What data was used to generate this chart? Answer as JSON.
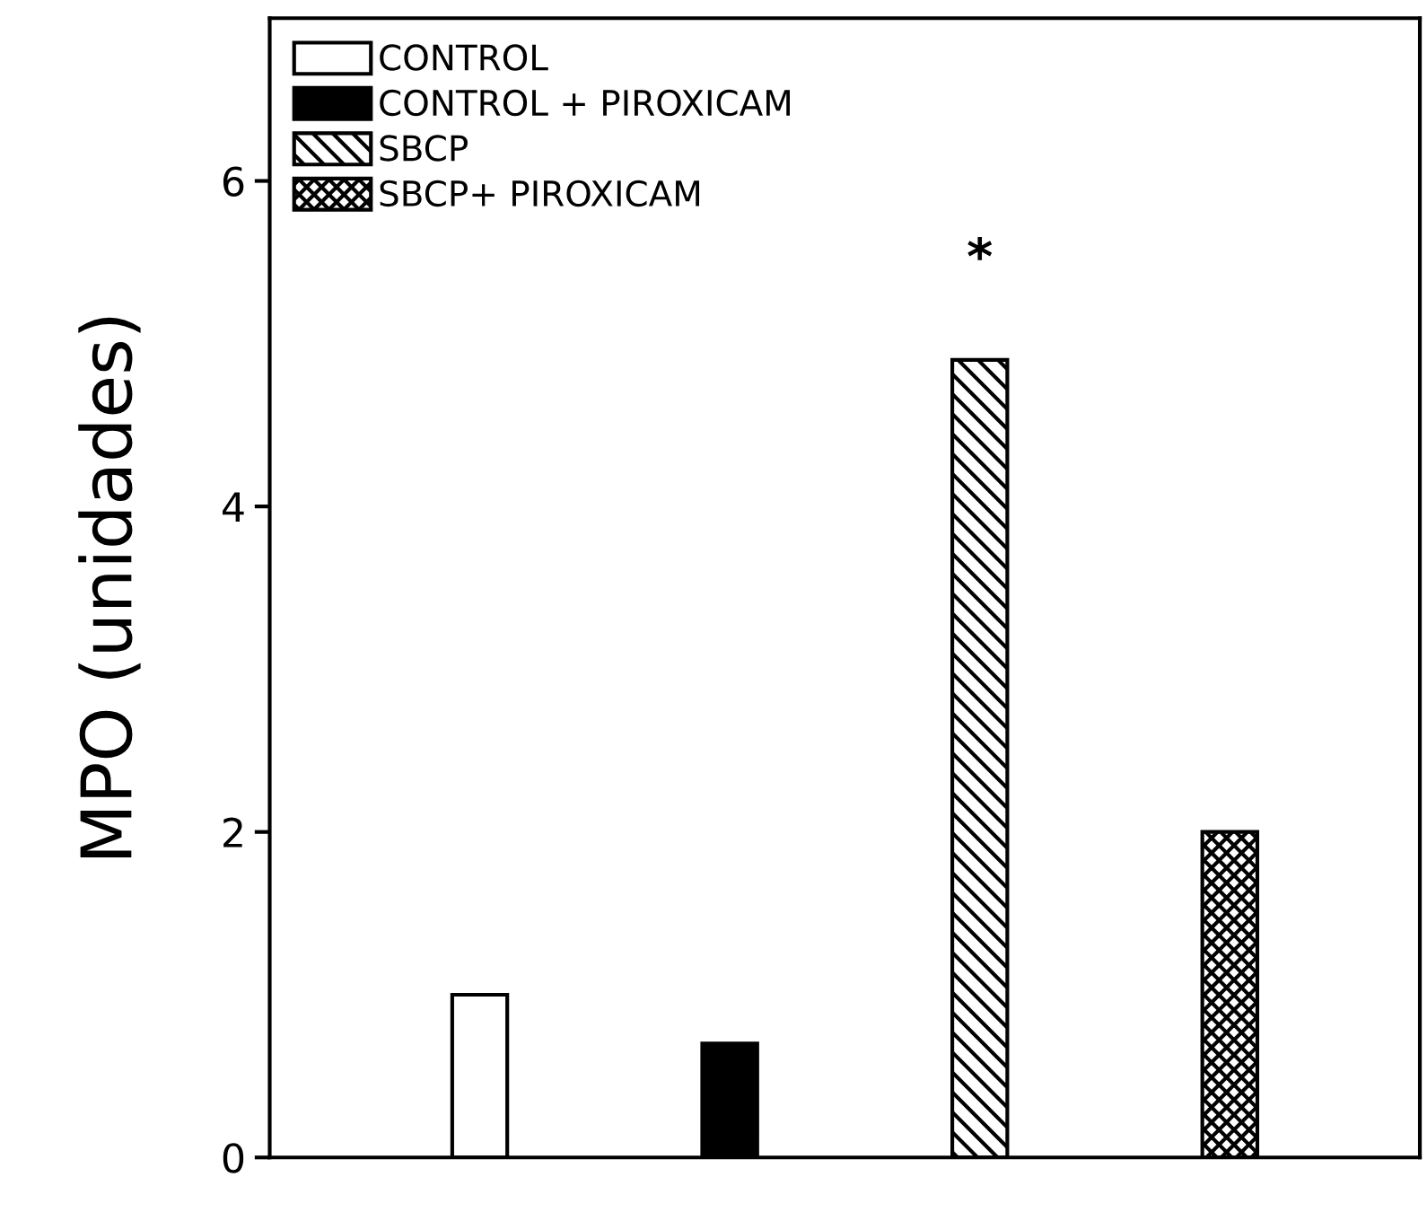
{
  "chart_data": {
    "type": "bar",
    "ylabel": "MPO (unidades)",
    "categories": [
      null,
      null,
      null,
      null
    ],
    "series": [
      {
        "name": "CONTROL",
        "color": "#ffffff",
        "values": [
          1.0,
          null,
          null,
          null
        ]
      },
      {
        "name": "CONTROL + PIROXICAM",
        "color": "#000000",
        "values": [
          null,
          0.7,
          null,
          null
        ]
      },
      {
        "name": "SBCP",
        "color": "#000000",
        "values": [
          null,
          null,
          4.9,
          null
        ]
      },
      {
        "name": "SBCP+ PIROXICAM",
        "color": "#000000",
        "values": [
          null,
          null,
          null,
          2.0
        ]
      }
    ],
    "ylim": [
      0,
      7
    ],
    "yticks": [
      0,
      2,
      4,
      6
    ],
    "tick_labels": "y",
    "grid": false,
    "legend": "top left",
    "annotations": [
      "*"
    ]
  }
}
